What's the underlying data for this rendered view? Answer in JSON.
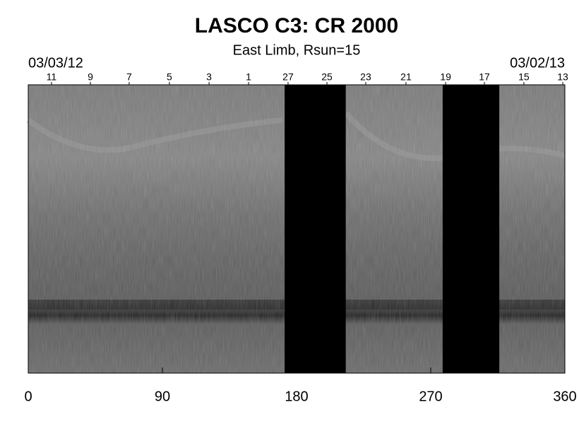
{
  "chart_data": {
    "type": "synoptic-map",
    "title": "LASCO C3: CR 2000",
    "subtitle": "East Limb, Rsun=15",
    "start_date": "03/03/12",
    "end_date": "03/02/13",
    "xlim": [
      0,
      360
    ],
    "xticks": [
      0,
      90,
      180,
      270,
      360
    ],
    "top_ticks": [
      {
        "value": 15.6,
        "label": "11"
      },
      {
        "value": 41.7,
        "label": "9"
      },
      {
        "value": 67.7,
        "label": "7"
      },
      {
        "value": 94.7,
        "label": "5"
      },
      {
        "value": 121.3,
        "label": "3"
      },
      {
        "value": 147.8,
        "label": "1"
      },
      {
        "value": 174.3,
        "label": "27"
      },
      {
        "value": 200.4,
        "label": "25"
      },
      {
        "value": 226.4,
        "label": "23"
      },
      {
        "value": 253.4,
        "label": "21"
      },
      {
        "value": 280,
        "label": "19"
      },
      {
        "value": 306,
        "label": "17"
      },
      {
        "value": 332.5,
        "label": "15"
      },
      {
        "value": 358.6,
        "label": "13"
      }
    ],
    "gaps": [
      [
        172,
        213
      ],
      [
        278,
        316
      ]
    ],
    "gap_color": "#000000"
  }
}
